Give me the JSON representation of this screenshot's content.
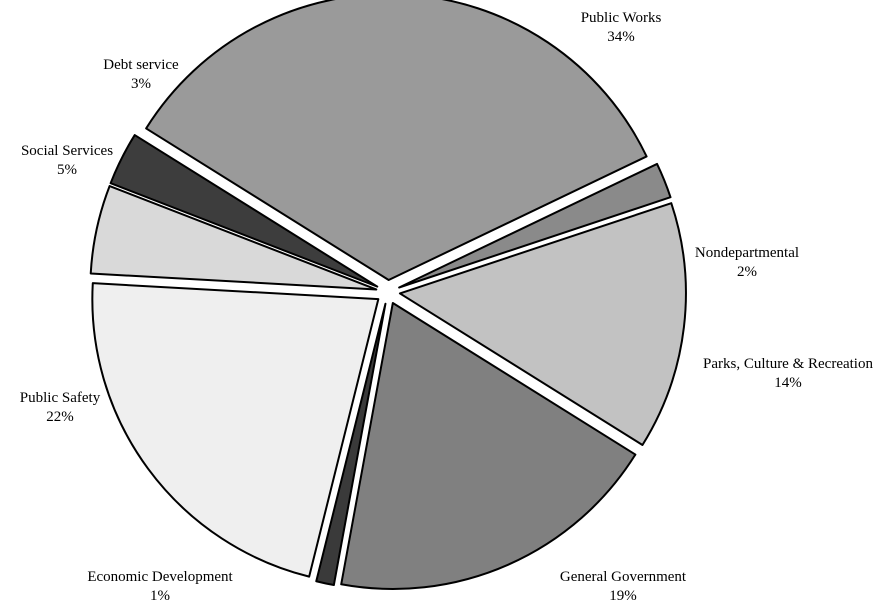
{
  "chart_data": {
    "type": "pie",
    "title": "",
    "slices": [
      {
        "label": "Public Works",
        "value": 34,
        "value_label": "34%",
        "color": "#9a9a9a"
      },
      {
        "label": "Nondepartmental",
        "value": 2,
        "value_label": "2%",
        "color": "#8a8a8a"
      },
      {
        "label": "Parks, Culture & Recreation",
        "value": 14,
        "value_label": "14%",
        "color": "#c2c2c2"
      },
      {
        "label": "General Government",
        "value": 19,
        "value_label": "19%",
        "color": "#808080"
      },
      {
        "label": "Economic Development",
        "value": 1,
        "value_label": "1%",
        "color": "#3a3a3a"
      },
      {
        "label": "Public Safety",
        "value": 22,
        "value_label": "22%",
        "color": "#efefef"
      },
      {
        "label": "Social Services",
        "value": 5,
        "value_label": "5%",
        "color": "#d9d9d9"
      },
      {
        "label": "Debt service",
        "value": 3,
        "value_label": "3%",
        "color": "#3d3d3d"
      }
    ],
    "exploded": true,
    "legend": "none"
  }
}
